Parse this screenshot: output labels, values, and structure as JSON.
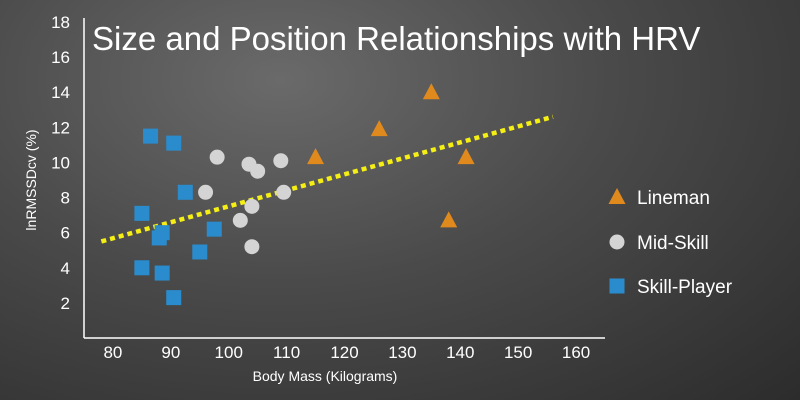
{
  "chart_data": {
    "type": "scatter",
    "title": "Size and Position Relationships with HRV",
    "xlabel": "Body Mass (Kilograms)",
    "ylabel": "lnRMSSDcv (%)",
    "xlim": [
      75,
      165
    ],
    "ylim": [
      0,
      18
    ],
    "x_ticks": [
      80,
      90,
      100,
      110,
      120,
      130,
      140,
      150,
      160
    ],
    "y_ticks": [
      2,
      4,
      6,
      8,
      10,
      12,
      14,
      16,
      18
    ],
    "legend_position": "right",
    "series": [
      {
        "name": "Lineman",
        "marker": "triangle",
        "color": "#e08a1e",
        "points": [
          [
            115,
            10.3
          ],
          [
            126,
            11.9
          ],
          [
            135,
            14.0
          ],
          [
            138,
            6.7
          ],
          [
            141,
            10.3
          ]
        ]
      },
      {
        "name": "Mid-Skill",
        "marker": "circle",
        "color": "#d4d4d4",
        "points": [
          [
            96,
            8.3
          ],
          [
            98,
            10.3
          ],
          [
            102,
            6.7
          ],
          [
            103.5,
            9.9
          ],
          [
            104,
            7.5
          ],
          [
            104,
            5.2
          ],
          [
            105,
            9.5
          ],
          [
            109,
            10.1
          ],
          [
            109.5,
            8.3
          ]
        ]
      },
      {
        "name": "Skill-Player",
        "marker": "square",
        "color": "#2a8ccd",
        "points": [
          [
            85,
            7.1
          ],
          [
            85,
            4.0
          ],
          [
            86.5,
            11.5
          ],
          [
            88,
            5.7
          ],
          [
            88.5,
            6.0
          ],
          [
            88.5,
            3.7
          ],
          [
            90.5,
            11.1
          ],
          [
            90.5,
            2.3
          ],
          [
            92.5,
            8.3
          ],
          [
            95,
            4.9
          ],
          [
            97.5,
            6.2
          ]
        ]
      }
    ],
    "trendline": {
      "style": "dotted",
      "color": "#f5ef14",
      "from": [
        78,
        5.5
      ],
      "to": [
        156,
        12.6
      ]
    }
  }
}
